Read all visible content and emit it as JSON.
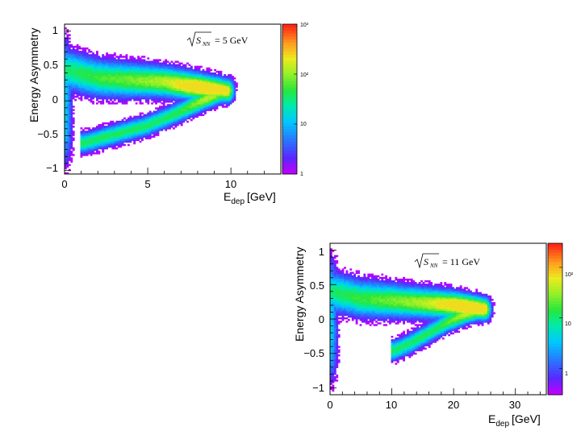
{
  "chart_data": [
    {
      "type": "heatmap",
      "xlabel": "E",
      "xlabel_sub": "dep",
      "xlabel_unit": "[GeV]",
      "ylabel": "Energy Asymmetry",
      "xlim": [
        0,
        13
      ],
      "ylim": [
        -1.05,
        1.1
      ],
      "xticks": [
        "0",
        "5",
        "10"
      ],
      "xtick_values": [
        0,
        5,
        10
      ],
      "yticks": [
        "1",
        "0.5",
        "0",
        "−0.5",
        "−1"
      ],
      "ytick_values": [
        1,
        0.5,
        0,
        -0.5,
        -1
      ],
      "annotation": {
        "sqrt": "S",
        "sub": "NN",
        "text": "= 5 GeV"
      },
      "colorbar": {
        "scale": "log",
        "range": [
          1,
          1000
        ],
        "tick_labels": [
          "10³",
          "10²",
          "10",
          "1"
        ],
        "tick_values": [
          1000,
          100,
          10,
          1
        ]
      },
      "shape": {
        "description": "V-shaped band opening to the left",
        "tip": {
          "x": 9.8,
          "y": 0.15
        },
        "upper_arm": [
          [
            0.1,
            0.45
          ],
          [
            2,
            0.33
          ],
          [
            4,
            0.3
          ],
          [
            6,
            0.28
          ],
          [
            8,
            0.22
          ],
          [
            9.8,
            0.15
          ]
        ],
        "lower_arm": [
          [
            1.2,
            -0.6
          ],
          [
            3,
            -0.48
          ],
          [
            5,
            -0.35
          ],
          [
            7,
            -0.15
          ],
          [
            8.5,
            0.02
          ],
          [
            9.8,
            0.15
          ]
        ],
        "peak_region": {
          "x": 8.2,
          "y": 0.1,
          "counts": 300
        }
      }
    },
    {
      "type": "heatmap",
      "xlabel": "E",
      "xlabel_sub": "dep",
      "xlabel_unit": "[GeV]",
      "ylabel": "Energy Asymmetry",
      "xlim": [
        0,
        35
      ],
      "ylim": [
        -1.1,
        1.1
      ],
      "xticks": [
        "0",
        "10",
        "20",
        "30"
      ],
      "xtick_values": [
        0,
        10,
        20,
        30
      ],
      "yticks": [
        "1",
        "0.5",
        "0",
        "−0.5",
        "−1"
      ],
      "ytick_values": [
        1,
        0.5,
        0,
        -0.5,
        -1
      ],
      "annotation": {
        "sqrt": "S",
        "sub": "NN",
        "text": "= 11 GeV"
      },
      "colorbar": {
        "scale": "log",
        "range": [
          0.3,
          300
        ],
        "tick_labels": [
          "10²",
          "10",
          "1"
        ],
        "tick_values": [
          100,
          10,
          1
        ]
      },
      "shape": {
        "description": "V-shaped band opening to the left",
        "tip": {
          "x": 25,
          "y": 0.15
        },
        "upper_arm": [
          [
            0.3,
            0.4
          ],
          [
            5,
            0.3
          ],
          [
            10,
            0.27
          ],
          [
            15,
            0.24
          ],
          [
            20,
            0.22
          ],
          [
            25,
            0.15
          ]
        ],
        "lower_arm": [
          [
            10.5,
            -0.45
          ],
          [
            13,
            -0.35
          ],
          [
            16,
            -0.2
          ],
          [
            19,
            -0.05
          ],
          [
            22,
            0.07
          ],
          [
            25,
            0.15
          ]
        ],
        "peak_region": {
          "x": 22,
          "y": 0.12,
          "counts": 150
        }
      }
    }
  ]
}
